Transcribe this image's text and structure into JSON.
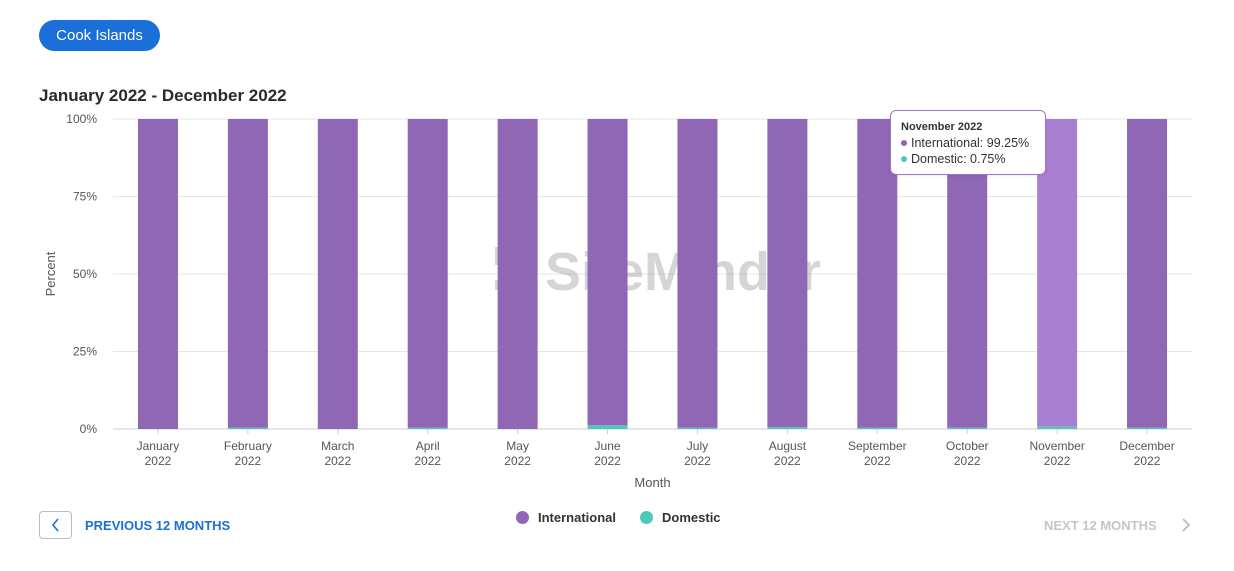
{
  "header": {
    "country_label": "Cook Islands",
    "range_title": "January 2022 - December 2022"
  },
  "colors": {
    "international": "#8f67b5",
    "international_highlight": "#a97fd1",
    "domestic": "#4cc9b8",
    "accent": "#1a6fd9",
    "grid": "#e6e6e6",
    "watermark": "#8a8a8a"
  },
  "watermark": "SiteMinder",
  "tooltip": {
    "title": "November 2022",
    "international": "International: 99.25%",
    "domestic": "Domestic: 0.75%"
  },
  "chart_data": {
    "type": "bar",
    "stacked": true,
    "xlabel": "Month",
    "ylabel": "Percent",
    "ylim": [
      0,
      100
    ],
    "yticks": [
      "0%",
      "25%",
      "50%",
      "75%",
      "100%"
    ],
    "categories": [
      [
        "January",
        "2022"
      ],
      [
        "February",
        "2022"
      ],
      [
        "March",
        "2022"
      ],
      [
        "April",
        "2022"
      ],
      [
        "May",
        "2022"
      ],
      [
        "June",
        "2022"
      ],
      [
        "July",
        "2022"
      ],
      [
        "August",
        "2022"
      ],
      [
        "September",
        "2022"
      ],
      [
        "October",
        "2022"
      ],
      [
        "November",
        "2022"
      ],
      [
        "December",
        "2022"
      ]
    ],
    "series": [
      {
        "name": "International",
        "values": [
          100,
          99.6,
          100,
          99.6,
          100,
          98.8,
          99.6,
          99.4,
          99.6,
          99.6,
          99.25,
          99.6
        ]
      },
      {
        "name": "Domestic",
        "values": [
          0,
          0.4,
          0,
          0.4,
          0,
          1.2,
          0.4,
          0.6,
          0.4,
          0.4,
          0.75,
          0.4
        ]
      }
    ],
    "highlighted_category": "November",
    "grid": true,
    "legend_position": "bottom-center"
  },
  "legend": {
    "international": "International",
    "domestic": "Domestic"
  },
  "nav": {
    "prev_label": "PREVIOUS 12 MONTHS",
    "next_label": "NEXT 12 MONTHS"
  },
  "icons": {
    "prev": "chevron-left-icon",
    "next": "chevron-right-icon"
  }
}
